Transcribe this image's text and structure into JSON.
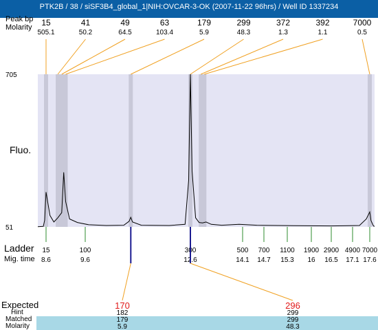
{
  "window": {
    "title": "PTK2B / 38 / siSF3B4_global_1|NIH:OVCAR-3-OK (2007-11-22 96hrs) / Well ID 1337234"
  },
  "labels": {
    "peak_row_label": "Peak bp",
    "molarity": "Molarity",
    "fluo": "Fluo.",
    "ladder": "Ladder",
    "mig_time": "Mig. time",
    "expected": "Expected",
    "hint": "Hint",
    "matched": "Matched",
    "molarity_bottom": "Molarity"
  },
  "colors": {
    "title_bar": "#0b5fa5",
    "plot_bg": "#e4e4f4",
    "peak_band": "#c8c8d8",
    "connector": "#f0a020",
    "ladder_tick": "#2e8b2e",
    "marker": "#1a1a90",
    "expected": "#e01818",
    "table_highlight": "#a8d8e6"
  },
  "chart_data": {
    "type": "line",
    "y_axis": {
      "max_label": "705",
      "min_label": "51",
      "max": 705,
      "min": 51
    },
    "ladder": {
      "bp": [
        "15",
        "100",
        "300",
        "500",
        "700",
        "1100",
        "1900",
        "2900",
        "4900",
        "7000"
      ],
      "mig_time": [
        "8.6",
        "9.6",
        "12.6",
        "14.1",
        "14.7",
        "15.3",
        "16",
        "16.5",
        "17.1",
        "17.6"
      ]
    },
    "peaks": [
      {
        "bp": "15",
        "molarity": "505.1",
        "time": 8.6
      },
      {
        "bp": "41",
        "molarity": "50.2",
        "time": 8.9
      },
      {
        "bp": "49",
        "molarity": "64.5",
        "time": 9.0
      },
      {
        "bp": "63",
        "molarity": "103.4",
        "time": 9.1
      },
      {
        "bp": "179",
        "molarity": "5.9",
        "time": 10.9
      },
      {
        "bp": "299",
        "molarity": "48.3",
        "time": 12.6
      },
      {
        "bp": "372",
        "molarity": "1.3",
        "time": 12.9
      },
      {
        "bp": "392",
        "molarity": "1.1",
        "time": 13.0
      },
      {
        "bp": "7000",
        "molarity": "0.5",
        "time": 17.6
      }
    ],
    "trace": [
      [
        8.0,
        52
      ],
      [
        8.4,
        53
      ],
      [
        8.5,
        80
      ],
      [
        8.6,
        200
      ],
      [
        8.7,
        100
      ],
      [
        8.8,
        72
      ],
      [
        8.9,
        90
      ],
      [
        9.0,
        112
      ],
      [
        9.05,
        285
      ],
      [
        9.1,
        160
      ],
      [
        9.2,
        85
      ],
      [
        9.4,
        70
      ],
      [
        9.7,
        60
      ],
      [
        10.2,
        57
      ],
      [
        10.7,
        58
      ],
      [
        10.85,
        75
      ],
      [
        10.9,
        92
      ],
      [
        10.95,
        72
      ],
      [
        11.2,
        58
      ],
      [
        12.0,
        57
      ],
      [
        12.45,
        62
      ],
      [
        12.55,
        250
      ],
      [
        12.6,
        705
      ],
      [
        12.65,
        290
      ],
      [
        12.75,
        90
      ],
      [
        12.85,
        70
      ],
      [
        12.95,
        68
      ],
      [
        13.05,
        72
      ],
      [
        13.2,
        62
      ],
      [
        13.5,
        58
      ],
      [
        14.0,
        62
      ],
      [
        14.5,
        58
      ],
      [
        15.5,
        56
      ],
      [
        16.5,
        55
      ],
      [
        17.3,
        57
      ],
      [
        17.5,
        85
      ],
      [
        17.6,
        115
      ],
      [
        17.7,
        78
      ],
      [
        17.9,
        55
      ],
      [
        18.0,
        53
      ]
    ],
    "expected": [
      {
        "label": "170",
        "hint": "182",
        "matched": "179",
        "molarity": "5.9",
        "time": 10.9
      },
      {
        "label": "296",
        "hint": "299",
        "matched": "299",
        "molarity": "48.3",
        "time": 12.6
      }
    ]
  }
}
